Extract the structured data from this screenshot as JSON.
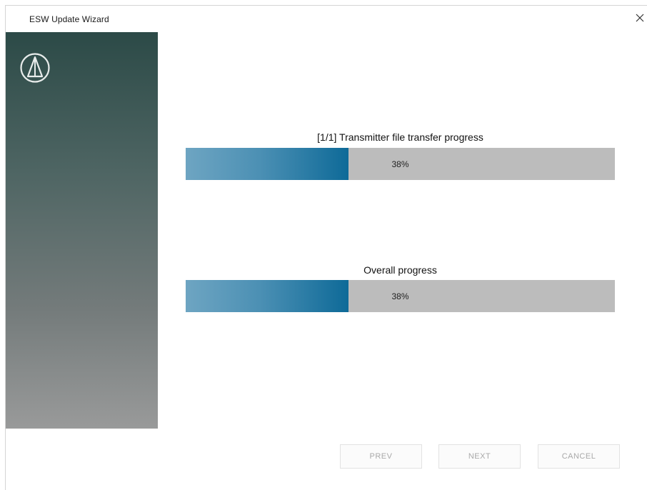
{
  "window": {
    "title": "ESW Update Wizard",
    "close_icon": "close-icon"
  },
  "sidebar": {
    "logo_icon": "audio-technica-logo-icon",
    "gradient_top": "#2c4a47",
    "gradient_bottom": "#999a9a"
  },
  "progress": {
    "file_transfer": {
      "label": "[1/1] Transmitter file transfer progress",
      "value_text": "38%",
      "value": 38
    },
    "overall": {
      "label": "Overall progress",
      "value_text": "38%",
      "value": 38
    },
    "fill_color": "#0e6a98",
    "track_color": "#bcbcbc"
  },
  "buttons": {
    "prev_label": "PREV",
    "next_label": "NEXT",
    "cancel_label": "CANCEL"
  }
}
